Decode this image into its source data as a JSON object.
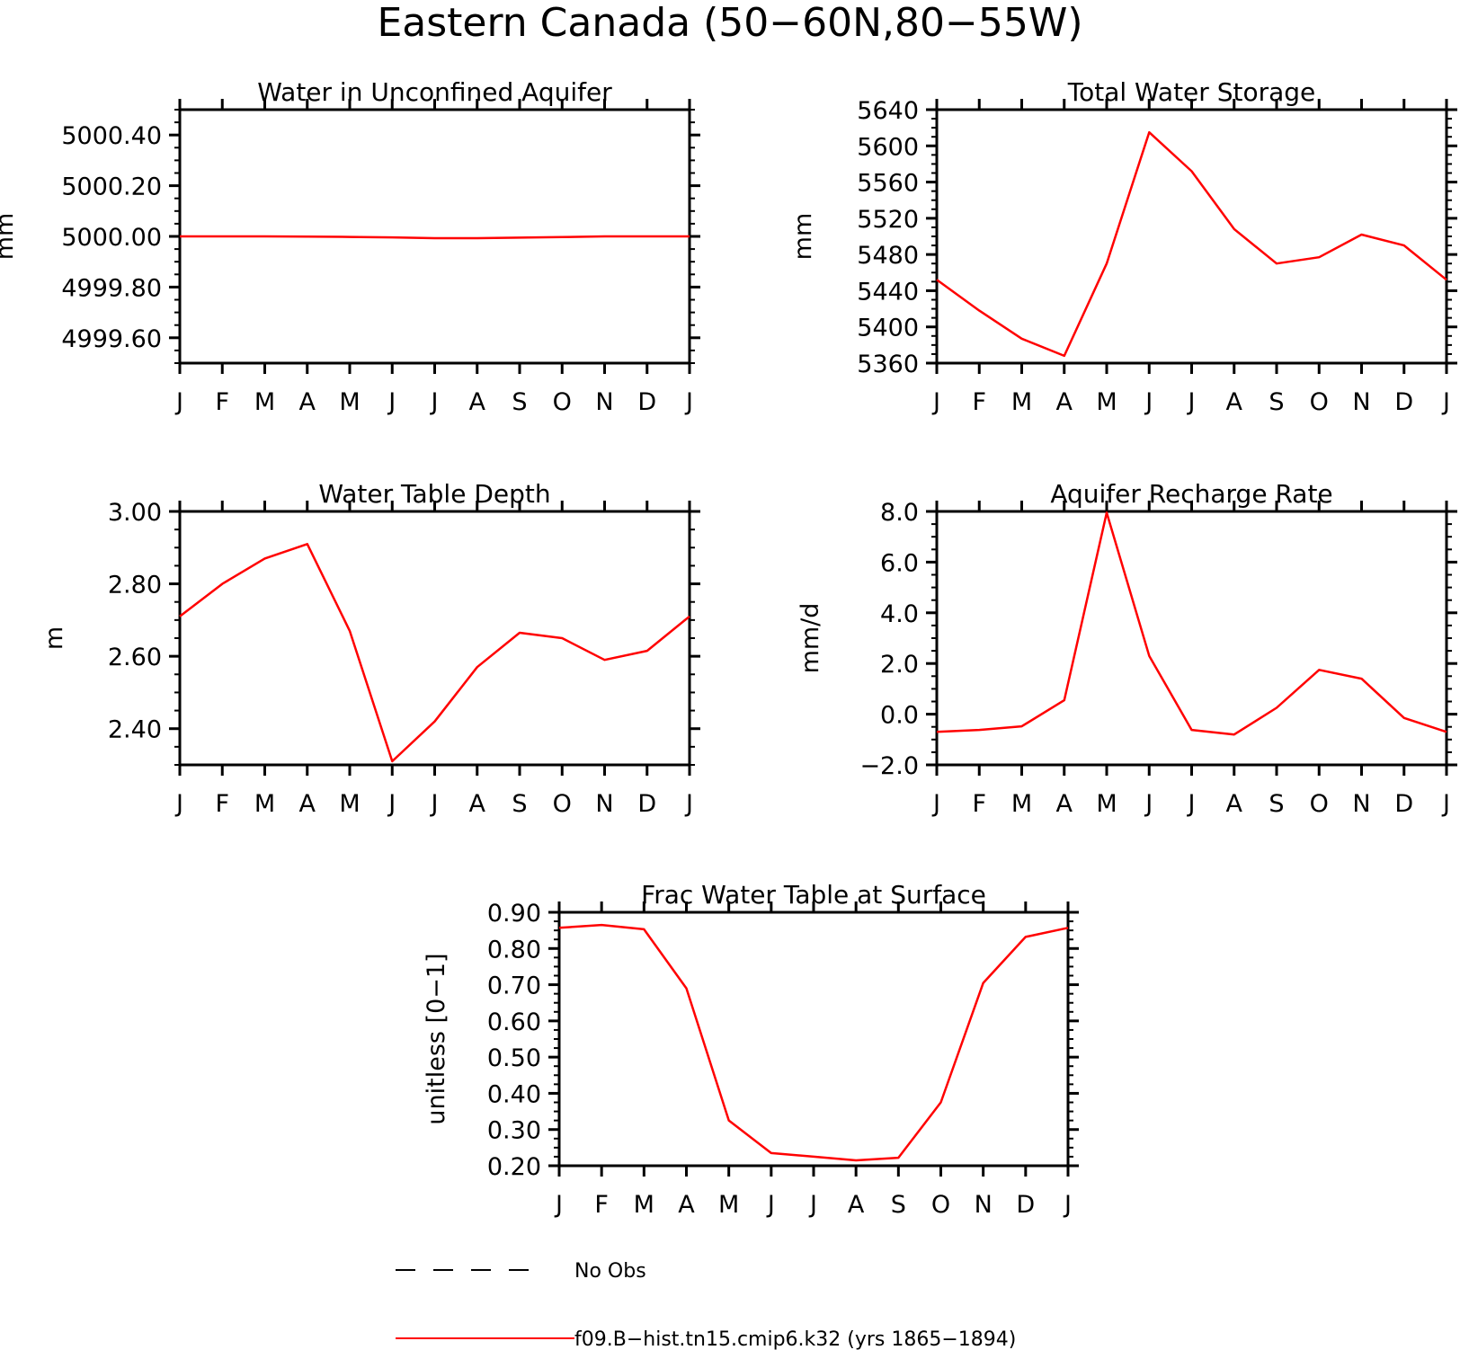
{
  "figure": {
    "title": "Eastern Canada (50−60N,80−55W)"
  },
  "colors": {
    "model_line": "#ff0000",
    "obs_line": "#000000",
    "axes": "#000000"
  },
  "chart_data": [
    {
      "id": "aquifer",
      "type": "line",
      "title": "Water in Unconfined Aquifer",
      "ylabel": "mm",
      "xlabel": "",
      "categories": [
        "J",
        "F",
        "M",
        "A",
        "M",
        "J",
        "J",
        "A",
        "S",
        "O",
        "N",
        "D",
        "J"
      ],
      "ylim": [
        4999.5,
        5000.5
      ],
      "yticks": [
        4999.6,
        4999.8,
        5000.0,
        5000.2,
        5000.4
      ],
      "ytick_labels": [
        "4999.60",
        "4999.80",
        "5000.00",
        "5000.20",
        "5000.40"
      ],
      "yminor": 0.05,
      "series": [
        {
          "values": [
            5000.0,
            5000.0,
            5000.0,
            4999.999,
            4999.998,
            4999.996,
            4999.993,
            4999.993,
            4999.995,
            4999.997,
            5000.0,
            5000.0,
            5000.0
          ]
        }
      ]
    },
    {
      "id": "tws",
      "type": "line",
      "title": "Total Water Storage",
      "ylabel": "mm",
      "xlabel": "",
      "categories": [
        "J",
        "F",
        "M",
        "A",
        "M",
        "J",
        "J",
        "A",
        "S",
        "O",
        "N",
        "D",
        "J"
      ],
      "ylim": [
        5360,
        5640
      ],
      "yticks": [
        5360,
        5400,
        5440,
        5480,
        5520,
        5560,
        5600,
        5640
      ],
      "ytick_labels": [
        "5360",
        "5400",
        "5440",
        "5480",
        "5520",
        "5560",
        "5600",
        "5640"
      ],
      "yminor": 10,
      "series": [
        {
          "values": [
            5452,
            5418,
            5387,
            5368,
            5470,
            5615,
            5572,
            5508,
            5470,
            5477,
            5502,
            5490,
            5452
          ]
        }
      ]
    },
    {
      "id": "wtd",
      "type": "line",
      "title": "Water Table Depth",
      "ylabel": "m",
      "xlabel": "",
      "categories": [
        "J",
        "F",
        "M",
        "A",
        "M",
        "J",
        "J",
        "A",
        "S",
        "O",
        "N",
        "D",
        "J"
      ],
      "ylim": [
        2.3,
        3.0
      ],
      "yticks": [
        2.4,
        2.6,
        2.8,
        3.0
      ],
      "ytick_labels": [
        "2.40",
        "2.60",
        "2.80",
        "3.00"
      ],
      "yminor": 0.05,
      "series": [
        {
          "values": [
            2.71,
            2.8,
            2.87,
            2.91,
            2.67,
            2.31,
            2.42,
            2.57,
            2.665,
            2.65,
            2.59,
            2.615,
            2.71
          ]
        }
      ]
    },
    {
      "id": "recharge",
      "type": "line",
      "title": "Aquifer Recharge Rate",
      "ylabel": "mm/d",
      "xlabel": "",
      "categories": [
        "J",
        "F",
        "M",
        "A",
        "M",
        "J",
        "J",
        "A",
        "S",
        "O",
        "N",
        "D",
        "J"
      ],
      "ylim": [
        -2.0,
        8.0
      ],
      "yticks": [
        -2.0,
        0.0,
        2.0,
        4.0,
        6.0,
        8.0
      ],
      "ytick_labels": [
        "−2.0",
        "0.0",
        "2.0",
        "4.0",
        "6.0",
        "8.0"
      ],
      "yminor": 0.5,
      "series": [
        {
          "values": [
            -0.7,
            -0.62,
            -0.48,
            0.55,
            7.95,
            2.3,
            -0.62,
            -0.8,
            0.25,
            1.75,
            1.4,
            -0.15,
            -0.7
          ]
        }
      ]
    },
    {
      "id": "frac",
      "type": "line",
      "title": "Frac Water Table at Surface",
      "ylabel": "unitless [0−1]",
      "xlabel": "",
      "categories": [
        "J",
        "F",
        "M",
        "A",
        "M",
        "J",
        "J",
        "A",
        "S",
        "O",
        "N",
        "D",
        "J"
      ],
      "ylim": [
        0.2,
        0.9
      ],
      "yticks": [
        0.2,
        0.3,
        0.4,
        0.5,
        0.6,
        0.7,
        0.8,
        0.9
      ],
      "ytick_labels": [
        "0.20",
        "0.30",
        "0.40",
        "0.50",
        "0.60",
        "0.70",
        "0.80",
        "0.90"
      ],
      "yminor": 0.025,
      "series": [
        {
          "values": [
            0.857,
            0.865,
            0.853,
            0.69,
            0.325,
            0.235,
            0.225,
            0.215,
            0.222,
            0.375,
            0.705,
            0.832,
            0.857
          ]
        }
      ]
    }
  ],
  "legend": {
    "items": [
      {
        "label": "No Obs",
        "style": "dashed",
        "color": "#000000"
      },
      {
        "label": "f09.B−hist.tn15.cmip6.k32 (yrs 1865−1894)",
        "style": "solid",
        "color": "#ff0000"
      }
    ]
  }
}
